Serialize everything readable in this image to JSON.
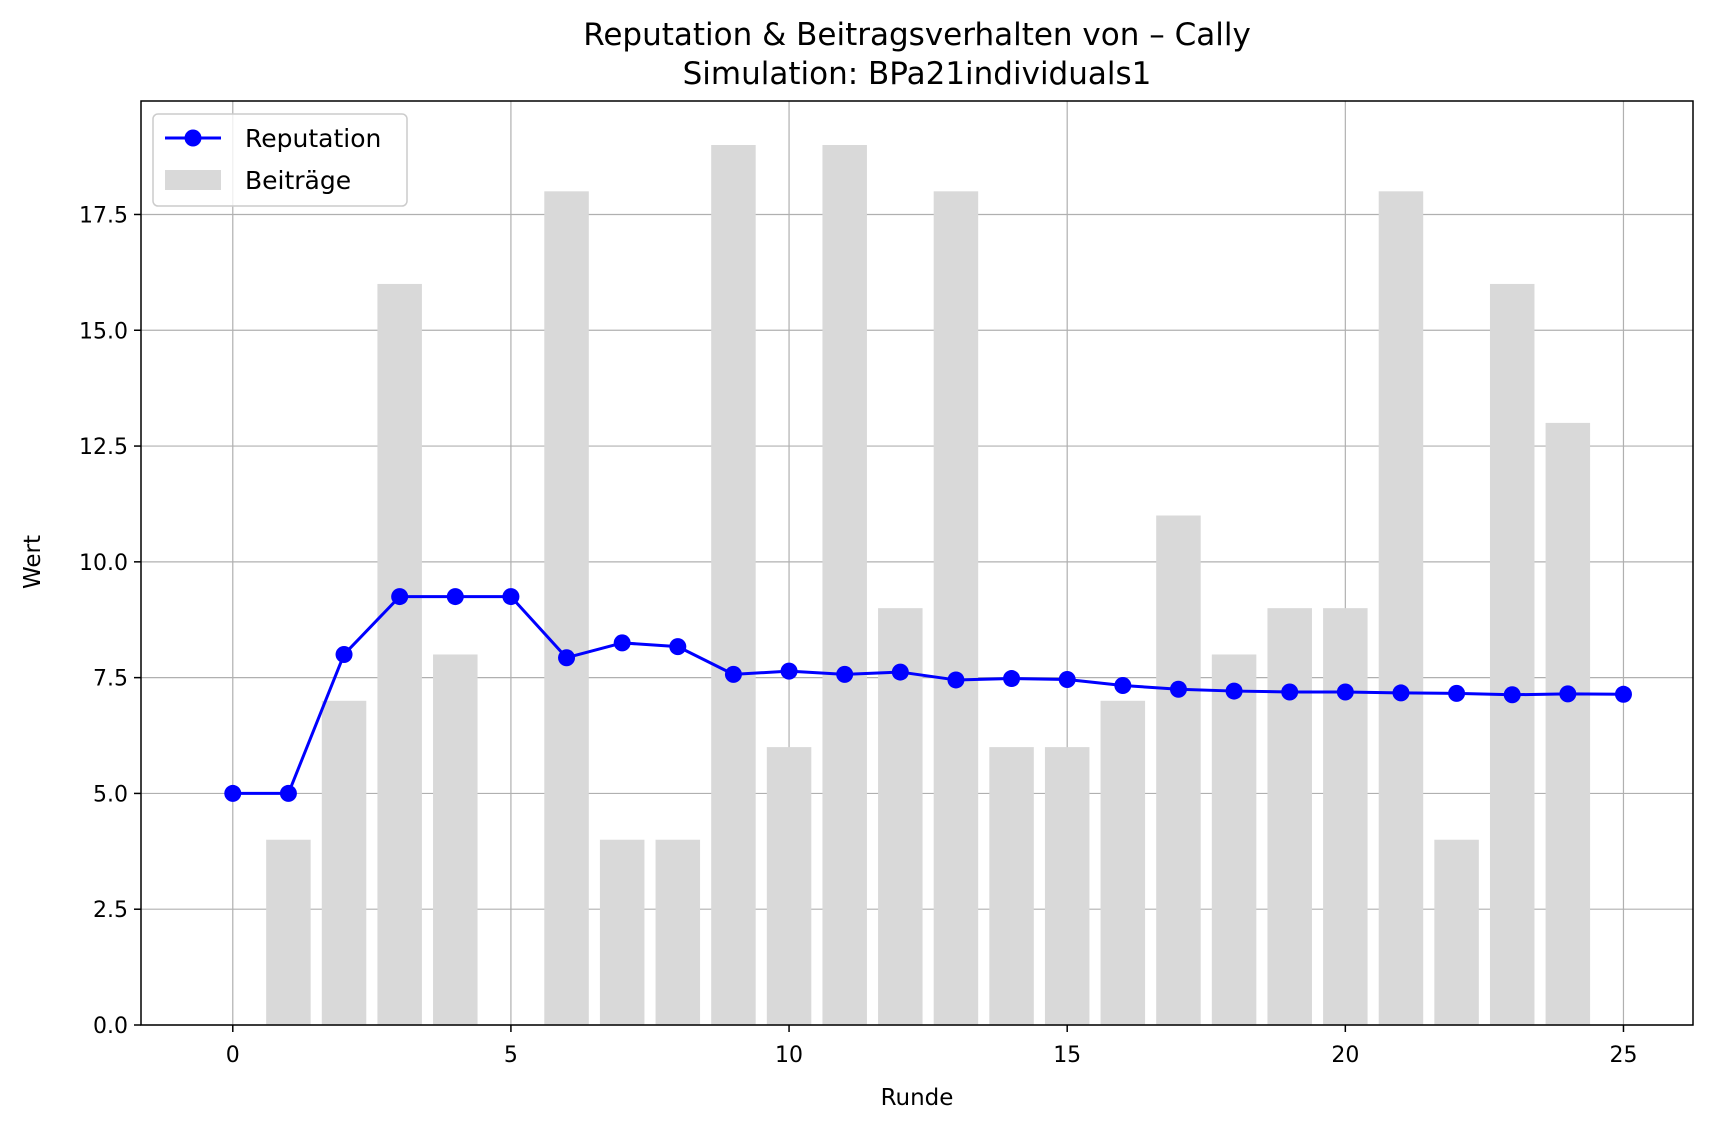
{
  "chart_data": {
    "type": "bar+line",
    "title": "Reputation & Beitragsverhalten von – Cally",
    "subtitle": "Simulation: BPa21individuals1",
    "xlabel": "Runde",
    "ylabel": "Wert",
    "xlim": [
      -1.65,
      26.25
    ],
    "ylim": [
      0,
      19.95
    ],
    "x_ticks": [
      0,
      5,
      10,
      15,
      20,
      25
    ],
    "y_ticks": [
      0.0,
      2.5,
      5.0,
      7.5,
      10.0,
      12.5,
      15.0,
      17.5
    ],
    "grid": true,
    "legend_position": "upper-left",
    "series": [
      {
        "name": "Reputation",
        "kind": "line",
        "marker": "circle",
        "color": "#0000ff",
        "x": [
          0,
          1,
          2,
          3,
          4,
          5,
          6,
          7,
          8,
          9,
          10,
          11,
          12,
          13,
          14,
          15,
          16,
          17,
          18,
          19,
          20,
          21,
          22,
          23,
          24,
          25
        ],
        "values": [
          5.0,
          5.0,
          8.0,
          9.25,
          9.25,
          9.25,
          7.93,
          8.25,
          8.17,
          7.57,
          7.64,
          7.57,
          7.62,
          7.45,
          7.48,
          7.46,
          7.33,
          7.25,
          7.21,
          7.19,
          7.19,
          7.17,
          7.16,
          7.13,
          7.15,
          7.14
        ]
      },
      {
        "name": "Beiträge",
        "kind": "bar",
        "color": "#d9d9d9",
        "x": [
          1,
          2,
          3,
          4,
          6,
          7,
          8,
          9,
          10,
          11,
          12,
          13,
          14,
          15,
          16,
          17,
          18,
          19,
          20,
          21,
          22,
          23,
          24
        ],
        "values": [
          4,
          7,
          16,
          8,
          18,
          4,
          4,
          19,
          6,
          19,
          9,
          18,
          6,
          6,
          7,
          11,
          8,
          9,
          9,
          18,
          4,
          16,
          13
        ]
      }
    ]
  }
}
